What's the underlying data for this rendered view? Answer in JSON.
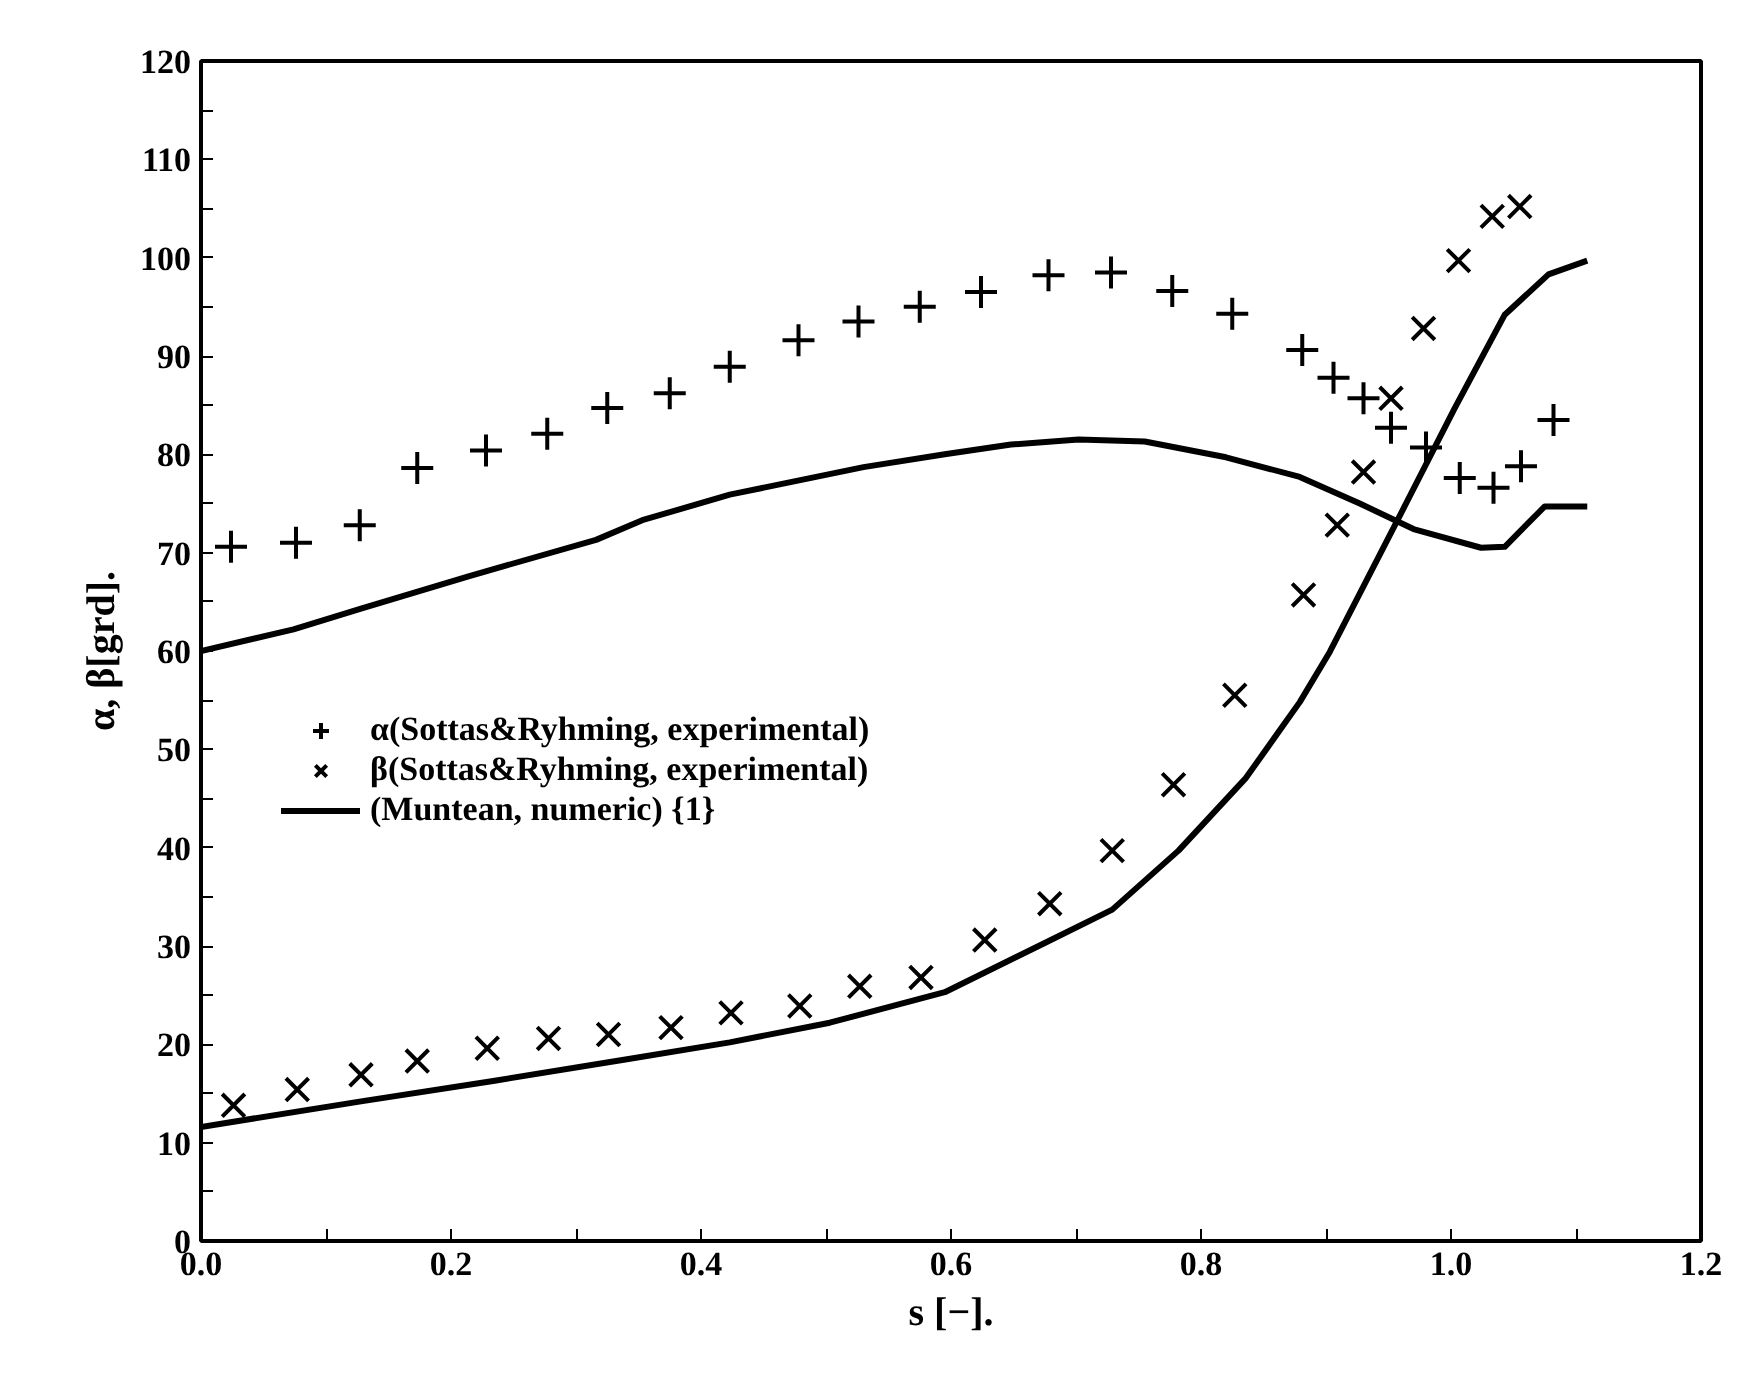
{
  "chart_data": {
    "type": "scatter",
    "xlabel": "s [−].",
    "ylabel": "α, β[grd].",
    "xlim": [
      0,
      1.2
    ],
    "ylim": [
      0,
      120
    ],
    "xticks": [
      {
        "value": 0,
        "label": "0.0"
      },
      {
        "value": 0.1,
        "label": null
      },
      {
        "value": 0.2,
        "label": "0.2"
      },
      {
        "value": 0.3,
        "label": null
      },
      {
        "value": 0.4,
        "label": "0.4"
      },
      {
        "value": 0.5,
        "label": null
      },
      {
        "value": 0.6,
        "label": "0.6"
      },
      {
        "value": 0.7,
        "label": null
      },
      {
        "value": 0.8,
        "label": "0.8"
      },
      {
        "value": 0.9,
        "label": null
      },
      {
        "value": 1.0,
        "label": "1.0"
      },
      {
        "value": 1.1,
        "label": null
      },
      {
        "value": 1.2,
        "label": "1.2"
      }
    ],
    "yticks": [
      0,
      {
        "value": 5,
        "label": null
      },
      10,
      {
        "value": 15,
        "label": null
      },
      20,
      {
        "value": 25,
        "label": null
      },
      30,
      {
        "value": 35,
        "label": null
      },
      40,
      {
        "value": 45,
        "label": null
      },
      50,
      {
        "value": 55,
        "label": null
      },
      60,
      {
        "value": 65,
        "label": null
      },
      70,
      {
        "value": 75,
        "label": null
      },
      80,
      {
        "value": 85,
        "label": null
      },
      90,
      {
        "value": 95,
        "label": null
      },
      100,
      {
        "value": 105,
        "label": null
      },
      110,
      {
        "value": 115,
        "label": null
      },
      120
    ],
    "grid": false,
    "legend": "left",
    "series": [
      {
        "name": "α(Sottas&Ryhming, experimental)",
        "color": "#000000",
        "marker": "cross",
        "x": [
          0.024,
          0.076,
          0.127,
          0.173,
          0.228,
          0.277,
          0.325,
          0.375,
          0.423,
          0.478,
          0.526,
          0.575,
          0.624,
          0.678,
          0.728,
          0.777,
          0.825,
          0.881,
          0.906,
          0.93,
          0.952,
          0.98,
          1.007,
          1.034,
          1.056,
          1.082
        ],
        "values": [
          70.6,
          71.0,
          72.8,
          78.6,
          80.4,
          82.1,
          84.7,
          86.2,
          88.9,
          91.6,
          93.5,
          95.0,
          96.5,
          98.2,
          98.5,
          96.6,
          94.3,
          90.6,
          87.8,
          85.7,
          82.7,
          80.7,
          77.6,
          76.6,
          78.8,
          83.5
        ]
      },
      {
        "name": "β(Sottas&Ryhming, experimental)",
        "color": "#000000",
        "marker": "x",
        "x": [
          0.026,
          0.077,
          0.128,
          0.173,
          0.229,
          0.278,
          0.326,
          0.376,
          0.424,
          0.479,
          0.527,
          0.576,
          0.627,
          0.679,
          0.729,
          0.778,
          0.827,
          0.882,
          0.909,
          0.93,
          0.952,
          0.978,
          1.006,
          1.033,
          1.055
        ],
        "values": [
          13.8,
          15.4,
          16.9,
          18.3,
          19.6,
          20.6,
          21.0,
          21.7,
          23.2,
          23.9,
          25.9,
          26.8,
          30.6,
          34.3,
          39.7,
          46.4,
          55.5,
          65.7,
          72.8,
          78.2,
          85.7,
          92.8,
          99.7,
          104.2,
          105.2
        ]
      },
      {
        "name": "(Muntean, numeric) {1}",
        "color": "#000000",
        "type": "line",
        "line_style": "solid",
        "x": [
          0,
          0.074,
          0.128,
          0.214,
          0.316,
          0.353,
          0.423,
          0.53,
          0.595,
          0.648,
          0.702,
          0.755,
          0.82,
          0.879,
          0.927,
          0.97,
          1.024,
          1.043,
          1.075,
          1.109
        ],
        "values": [
          60,
          62.2,
          64.3,
          67.6,
          71.3,
          73.3,
          75.9,
          78.7,
          80.0,
          81.0,
          81.5,
          81.3,
          79.7,
          77.7,
          75.0,
          72.4,
          70.5,
          70.6,
          74.7,
          74.7
        ]
      },
      {
        "color": "#000000",
        "type": "line",
        "line_style": "solid",
        "x": [
          0,
          0.128,
          0.235,
          0.342,
          0.423,
          0.503,
          0.595,
          0.675,
          0.729,
          0.782,
          0.836,
          0.879,
          0.903,
          0.96,
          1.003,
          1.043,
          1.078,
          1.109
        ],
        "values": [
          11.6,
          14.2,
          16.3,
          18.5,
          20.2,
          22.2,
          25.3,
          30.3,
          33.7,
          39.7,
          47.1,
          54.8,
          59.9,
          74.0,
          84.7,
          94.2,
          98.3,
          99.7
        ]
      }
    ]
  }
}
